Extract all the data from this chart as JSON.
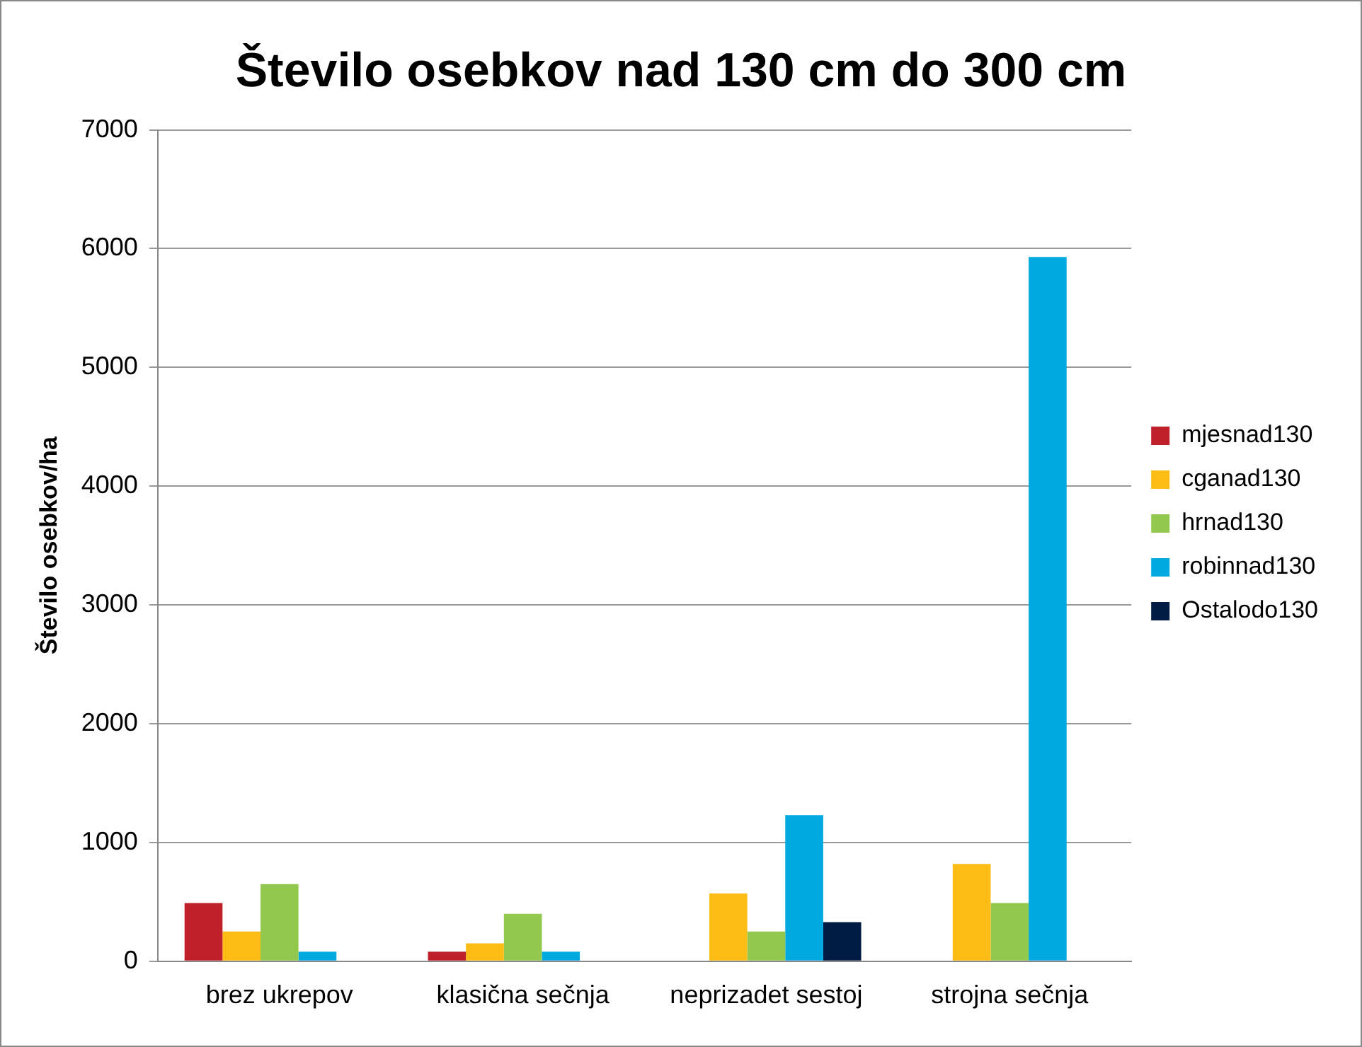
{
  "chart_data": {
    "type": "bar",
    "title": "Število osebkov nad 130 cm do 300 cm",
    "ylabel": "Število osebkov/ha",
    "categories": [
      "brez ukrepov",
      "klasična sečnja",
      "neprizadet sestoj",
      "strojna sečnja"
    ],
    "series": [
      {
        "name": "mjesnad130",
        "color": "#c0202a",
        "values": [
          490,
          80,
          null,
          null
        ]
      },
      {
        "name": "cganad130",
        "color": "#fdbd14",
        "values": [
          250,
          150,
          570,
          820
        ]
      },
      {
        "name": "hrnad130",
        "color": "#92c84e",
        "values": [
          650,
          400,
          250,
          490
        ]
      },
      {
        "name": "robinnad130",
        "color": "#00a9e0",
        "values": [
          80,
          80,
          1230,
          5930
        ]
      },
      {
        "name": "Ostalodo130",
        "color": "#001c44",
        "values": [
          null,
          null,
          330,
          null
        ]
      }
    ],
    "ylim": [
      0,
      7000
    ],
    "yticks": [
      0,
      1000,
      2000,
      3000,
      4000,
      5000,
      6000,
      7000
    ],
    "grid": "y",
    "legend": "right"
  }
}
